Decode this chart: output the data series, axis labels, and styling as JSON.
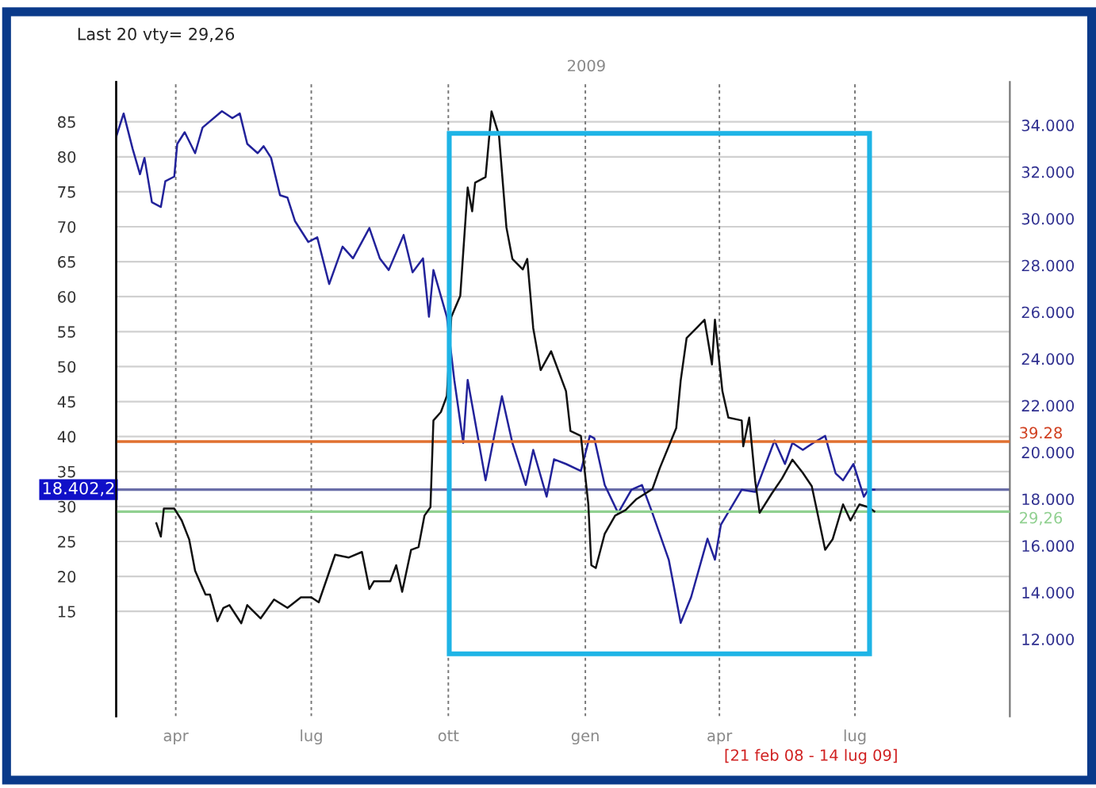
{
  "chart_data": {
    "type": "line",
    "title": "Last 20 vty= 29,26",
    "annotations": [
      "2009",
      "[21 feb 08 - 14 lug 09]"
    ],
    "xlim": [
      "2008-02-21",
      "2009-10-13"
    ],
    "xticks": [
      {
        "value": "2008-04-01",
        "label": "apr"
      },
      {
        "value": "2008-07-01",
        "label": "lug"
      },
      {
        "value": "2008-10-01",
        "label": "ott"
      },
      {
        "value": "2009-01-01",
        "label": "gen"
      },
      {
        "value": "2009-04-01",
        "label": "apr"
      },
      {
        "value": "2009-07-01",
        "label": "lug"
      }
    ],
    "ylim": [
      0,
      90.7
    ],
    "yticks": [
      15,
      20,
      25,
      30,
      35,
      40,
      45,
      50,
      55,
      60,
      65,
      70,
      75,
      80,
      85
    ],
    "y2lim": [
      8700,
      35850
    ],
    "y2ticks": [
      {
        "value": 12000,
        "label": "12.000"
      },
      {
        "value": 14000,
        "label": "14.000"
      },
      {
        "value": 16000,
        "label": "16.000"
      },
      {
        "value": 18000,
        "label": "18.000"
      },
      {
        "value": 20000,
        "label": "20.000"
      },
      {
        "value": 22000,
        "label": "22.000"
      },
      {
        "value": 24000,
        "label": "24.000"
      },
      {
        "value": 26000,
        "label": "26.000"
      },
      {
        "value": 28000,
        "label": "28.000"
      },
      {
        "value": 30000,
        "label": "30.000"
      },
      {
        "value": 32000,
        "label": "32.000"
      },
      {
        "value": 34000,
        "label": "34.000"
      }
    ],
    "grid": true,
    "legend": false,
    "line_style": "solid",
    "marker": "none",
    "ref_lines": [
      {
        "axis": "y",
        "value": 39.28,
        "label": "39.28",
        "color": "#e07030"
      },
      {
        "axis": "y",
        "value": 29.26,
        "label": "29,26",
        "color": "#90d090"
      },
      {
        "axis": "y2",
        "value": 18402.2,
        "label": "18.402,2",
        "color": "#6a6ea8"
      }
    ],
    "series": [
      {
        "color": "#22229a",
        "axis": "y2",
        "x": [
          "2008-02-21",
          "2008-02-26",
          "2008-03-03",
          "2008-03-08",
          "2008-03-11",
          "2008-03-16",
          "2008-03-22",
          "2008-03-25",
          "2008-03-31",
          "2008-04-02",
          "2008-04-07",
          "2008-04-14",
          "2008-04-19",
          "2008-05-02",
          "2008-05-09",
          "2008-05-14",
          "2008-05-19",
          "2008-05-26",
          "2008-05-30",
          "2008-06-04",
          "2008-06-10",
          "2008-06-15",
          "2008-06-20",
          "2008-06-29",
          "2008-07-05",
          "2008-07-13",
          "2008-07-22",
          "2008-07-29",
          "2008-08-09",
          "2008-08-16",
          "2008-08-22",
          "2008-09-01",
          "2008-09-07",
          "2008-09-14",
          "2008-09-18",
          "2008-09-21",
          "2008-09-30",
          "2008-10-05",
          "2008-10-11",
          "2008-10-14",
          "2008-10-26",
          "2008-11-06",
          "2008-11-13",
          "2008-11-22",
          "2008-11-27",
          "2008-12-06",
          "2008-12-11",
          "2008-12-19",
          "2008-12-29",
          "2009-01-04",
          "2009-01-07",
          "2009-01-14",
          "2009-01-23",
          "2009-02-01",
          "2009-02-08",
          "2009-02-15",
          "2009-02-26",
          "2009-03-01",
          "2009-03-06",
          "2009-03-13",
          "2009-03-24",
          "2009-03-29",
          "2009-04-02",
          "2009-04-16",
          "2009-04-25",
          "2009-05-08",
          "2009-05-15",
          "2009-05-20",
          "2009-05-27",
          "2009-06-03",
          "2009-06-11",
          "2009-06-18",
          "2009-06-23",
          "2009-06-30",
          "2009-07-07",
          "2009-07-10",
          "2009-07-14"
        ],
        "values": [
          33500,
          34500,
          33000,
          31900,
          32600,
          30700,
          30500,
          31600,
          31800,
          33200,
          33700,
          32800,
          33900,
          34600,
          34300,
          34500,
          33200,
          32800,
          33100,
          32600,
          31000,
          30900,
          29900,
          29000,
          29200,
          27200,
          28800,
          28300,
          29600,
          28300,
          27800,
          29300,
          27700,
          28300,
          25800,
          27800,
          25800,
          23100,
          20400,
          23100,
          18800,
          22400,
          20400,
          18600,
          20100,
          18100,
          19700,
          19500,
          19200,
          20700,
          20600,
          18600,
          17400,
          18400,
          18600,
          17400,
          15400,
          14400,
          12700,
          13800,
          16300,
          15400,
          16900,
          18400,
          18300,
          20500,
          19500,
          20400,
          20100,
          20400,
          20700,
          19100,
          18800,
          19500,
          18100,
          18400,
          18400
        ]
      },
      {
        "color": "#111111",
        "x": [
          "2008-03-19",
          "2008-03-22",
          "2008-03-24",
          "2008-03-31",
          "2008-04-05",
          "2008-04-10",
          "2008-04-14",
          "2008-04-21",
          "2008-04-24",
          "2008-04-29",
          "2008-05-03",
          "2008-05-07",
          "2008-05-15",
          "2008-05-19",
          "2008-05-28",
          "2008-06-06",
          "2008-06-15",
          "2008-06-24",
          "2008-07-01",
          "2008-07-06",
          "2008-07-17",
          "2008-07-26",
          "2008-08-04",
          "2008-08-09",
          "2008-08-12",
          "2008-08-23",
          "2008-08-27",
          "2008-08-31",
          "2008-09-06",
          "2008-09-11",
          "2008-09-15",
          "2008-09-19",
          "2008-09-21",
          "2008-09-26",
          "2008-09-30",
          "2008-10-03",
          "2008-10-09",
          "2008-10-14",
          "2008-10-17",
          "2008-10-19",
          "2008-10-26",
          "2008-10-30",
          "2008-11-04",
          "2008-11-09",
          "2008-11-13",
          "2008-11-20",
          "2008-11-23",
          "2008-11-27",
          "2008-12-02",
          "2008-12-09",
          "2008-12-19",
          "2008-12-22",
          "2008-12-29",
          "2009-01-03",
          "2009-01-05",
          "2009-01-08",
          "2009-01-14",
          "2009-01-21",
          "2009-01-28",
          "2009-02-04",
          "2009-02-15",
          "2009-02-20",
          "2009-03-03",
          "2009-03-06",
          "2009-03-10",
          "2009-03-17",
          "2009-03-22",
          "2009-03-27",
          "2009-03-29",
          "2009-04-03",
          "2009-04-07",
          "2009-04-16",
          "2009-04-17",
          "2009-04-21",
          "2009-04-25",
          "2009-04-28",
          "2009-05-06",
          "2009-05-13",
          "2009-05-20",
          "2009-05-27",
          "2009-06-02",
          "2009-06-05",
          "2009-06-11",
          "2009-06-16",
          "2009-06-23",
          "2009-06-28",
          "2009-07-04",
          "2009-07-10",
          "2009-07-14"
        ],
        "values": [
          27.6,
          25.7,
          29.7,
          29.7,
          28.0,
          25.3,
          20.8,
          17.4,
          17.4,
          13.6,
          15.5,
          15.9,
          13.3,
          15.9,
          14.0,
          16.7,
          15.5,
          17.0,
          17.0,
          16.3,
          23.1,
          22.7,
          23.5,
          18.2,
          19.3,
          19.3,
          21.6,
          17.8,
          23.8,
          24.2,
          28.7,
          29.9,
          42.3,
          43.5,
          45.8,
          57.1,
          60.1,
          75.6,
          72.2,
          76.3,
          77.1,
          86.5,
          83.1,
          69.9,
          65.4,
          63.9,
          65.4,
          55.5,
          49.5,
          52.2,
          46.5,
          40.8,
          40.1,
          30.3,
          21.6,
          21.2,
          26.1,
          28.7,
          29.5,
          31.0,
          32.5,
          35.5,
          41.2,
          48.0,
          54.1,
          55.6,
          56.7,
          50.3,
          56.7,
          46.5,
          42.7,
          42.3,
          38.6,
          42.7,
          33.7,
          29.1,
          31.8,
          34.0,
          36.7,
          34.8,
          32.9,
          29.9,
          23.8,
          25.3,
          30.3,
          28.0,
          30.3,
          29.9,
          29.3
        ]
      }
    ]
  }
}
